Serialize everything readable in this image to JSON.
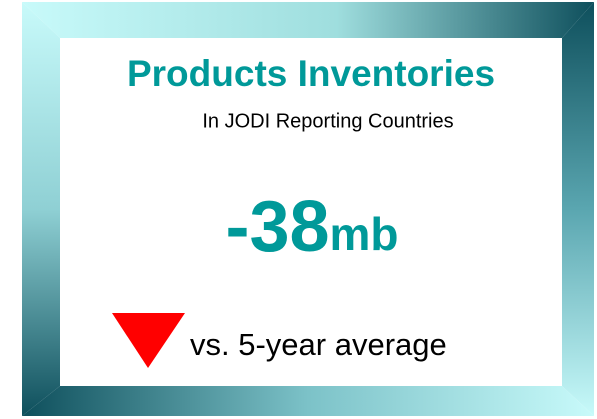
{
  "title": "Products Inventories",
  "subtitle": "In JODI Reporting Countries",
  "value": -38,
  "unit": "mb",
  "comparison": "vs. 5-year average"
}
